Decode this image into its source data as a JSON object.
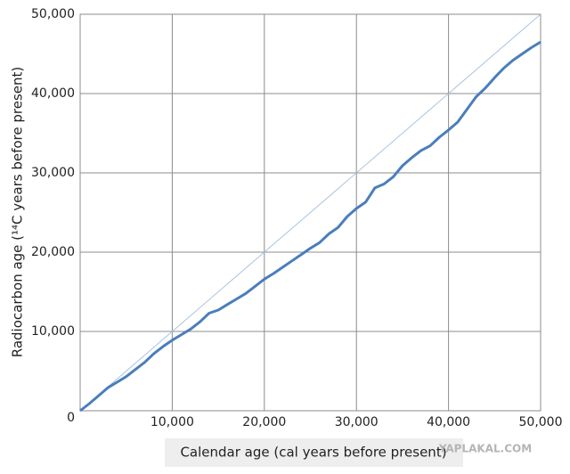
{
  "chart_data": {
    "type": "line",
    "x_label": "Calendar age (cal years before present)",
    "y_label": "Radiocarbon age (¹⁴C years before present)",
    "watermark": "YAPLAKAL.COM",
    "xlim": [
      0,
      50000
    ],
    "ylim": [
      0,
      50000
    ],
    "xticks": [
      {
        "value": 10000,
        "label": "10,000"
      },
      {
        "value": 20000,
        "label": "20,000"
      },
      {
        "value": 30000,
        "label": "30,000"
      },
      {
        "value": 40000,
        "label": "40,000"
      },
      {
        "value": 50000,
        "label": "50,000"
      }
    ],
    "yticks": [
      0,
      {
        "value": 10000,
        "label": "10,000"
      },
      {
        "value": 20000,
        "label": "20,000"
      },
      {
        "value": 30000,
        "label": "30,000"
      },
      {
        "value": 40000,
        "label": "40,000"
      },
      {
        "value": 50000,
        "label": "50,000"
      }
    ],
    "grid": true,
    "series": [
      {
        "color": "#a9c4e0",
        "width": 1,
        "x": [
          0,
          50000
        ],
        "values": [
          0,
          50000
        ]
      },
      {
        "color": "#4a7ebb",
        "width": 3,
        "x": [
          0,
          1000,
          2000,
          3000,
          4000,
          5000,
          6000,
          7000,
          8000,
          9000,
          10000,
          11000,
          12000,
          13000,
          14000,
          15000,
          16000,
          17000,
          18000,
          19000,
          20000,
          21000,
          22000,
          23000,
          24000,
          25000,
          26000,
          27000,
          28000,
          29000,
          30000,
          31000,
          32000,
          33000,
          34000,
          35000,
          36000,
          37000,
          38000,
          39000,
          40000,
          41000,
          42000,
          43000,
          44000,
          45000,
          46000,
          47000,
          48000,
          49000,
          50000
        ],
        "values": [
          0,
          900,
          1900,
          2900,
          3600,
          4300,
          5200,
          6100,
          7200,
          8100,
          8900,
          9600,
          10300,
          11200,
          12300,
          12700,
          13400,
          14100,
          14800,
          15700,
          16600,
          17300,
          18100,
          18900,
          19700,
          20500,
          21200,
          22300,
          23100,
          24500,
          25500,
          26300,
          28100,
          28600,
          29500,
          30900,
          31900,
          32800,
          33400,
          34500,
          35400,
          36400,
          38000,
          39600,
          40700,
          42000,
          43200,
          44200,
          45000,
          45800,
          46500
        ]
      }
    ]
  }
}
